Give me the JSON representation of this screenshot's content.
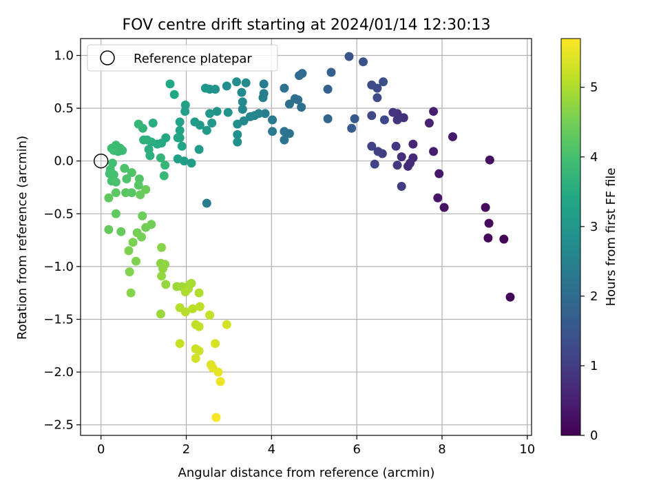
{
  "chart_data": {
    "type": "scatter",
    "title": "FOV centre drift starting at 2024/01/14 12:30:13",
    "xlabel": "Angular distance from reference (arcmin)",
    "ylabel": "Rotation from reference (arcmin)",
    "xlim": [
      -0.48,
      10.1
    ],
    "ylim": [
      -2.6,
      1.16
    ],
    "xticks": [
      0,
      2,
      4,
      6,
      8,
      10
    ],
    "xtick_labels": [
      "0",
      "2",
      "4",
      "6",
      "8",
      "10"
    ],
    "yticks": [
      -2.5,
      -2.0,
      -1.5,
      -1.0,
      -0.5,
      0.0,
      0.5,
      1.0
    ],
    "ytick_labels": [
      "−2.5",
      "−2.0",
      "−1.5",
      "−1.0",
      "−0.5",
      "0.0",
      "0.5",
      "1.0"
    ],
    "grid": true,
    "legend": {
      "position": "top-left",
      "entries": [
        {
          "label": "Reference platepar",
          "marker": "open-circle"
        }
      ]
    },
    "reference_point": {
      "x": 0.0,
      "y": 0.0
    },
    "colorbar": {
      "label": "Hours from first FF file",
      "colormap": "viridis",
      "range": [
        0,
        5.7
      ],
      "ticks": [
        0,
        1,
        2,
        3,
        4,
        5
      ],
      "tick_labels": [
        "0",
        "1",
        "2",
        "3",
        "4",
        "5"
      ]
    },
    "points": [
      {
        "x": 9.6,
        "y": -1.29,
        "c": 0.05
      },
      {
        "x": 9.45,
        "y": -0.74,
        "c": 0.1
      },
      {
        "x": 9.08,
        "y": -0.73,
        "c": 0.12
      },
      {
        "x": 9.1,
        "y": -0.59,
        "c": 0.14
      },
      {
        "x": 9.02,
        "y": -0.44,
        "c": 0.16
      },
      {
        "x": 9.12,
        "y": 0.01,
        "c": 0.2
      },
      {
        "x": 8.05,
        "y": -0.44,
        "c": 0.28
      },
      {
        "x": 7.9,
        "y": -0.35,
        "c": 0.33
      },
      {
        "x": 7.93,
        "y": -0.12,
        "c": 0.38
      },
      {
        "x": 8.25,
        "y": 0.23,
        "c": 0.42
      },
      {
        "x": 7.8,
        "y": 0.09,
        "c": 0.47
      },
      {
        "x": 7.8,
        "y": 0.47,
        "c": 0.5
      },
      {
        "x": 7.7,
        "y": 0.36,
        "c": 0.55
      },
      {
        "x": 7.32,
        "y": 0.16,
        "c": 0.6
      },
      {
        "x": 7.32,
        "y": 0.03,
        "c": 0.65
      },
      {
        "x": 7.25,
        "y": -0.02,
        "c": 0.67
      },
      {
        "x": 7.2,
        "y": -0.05,
        "c": 0.7
      },
      {
        "x": 7.05,
        "y": 0.04,
        "c": 0.74
      },
      {
        "x": 7.1,
        "y": 0.41,
        "c": 0.78
      },
      {
        "x": 6.95,
        "y": 0.45,
        "c": 0.81
      },
      {
        "x": 6.85,
        "y": 0.46,
        "c": 0.85
      },
      {
        "x": 6.95,
        "y": 0.39,
        "c": 0.88
      },
      {
        "x": 6.92,
        "y": 0.14,
        "c": 0.9
      },
      {
        "x": 6.95,
        "y": -0.04,
        "c": 0.95
      },
      {
        "x": 7.05,
        "y": -0.24,
        "c": 1.0
      },
      {
        "x": 6.6,
        "y": 0.07,
        "c": 1.02
      },
      {
        "x": 6.5,
        "y": 0.09,
        "c": 1.06
      },
      {
        "x": 6.35,
        "y": 0.14,
        "c": 1.1
      },
      {
        "x": 6.42,
        "y": -0.03,
        "c": 1.15
      },
      {
        "x": 6.65,
        "y": 0.39,
        "c": 1.2
      },
      {
        "x": 6.35,
        "y": 0.43,
        "c": 1.25
      },
      {
        "x": 6.48,
        "y": 0.6,
        "c": 1.28
      },
      {
        "x": 6.48,
        "y": 0.69,
        "c": 1.3
      },
      {
        "x": 6.35,
        "y": 0.72,
        "c": 1.33
      },
      {
        "x": 6.62,
        "y": 0.75,
        "c": 1.37
      },
      {
        "x": 6.15,
        "y": 0.94,
        "c": 1.42
      },
      {
        "x": 5.82,
        "y": 0.99,
        "c": 1.5
      },
      {
        "x": 5.95,
        "y": 0.4,
        "c": 1.58
      },
      {
        "x": 5.88,
        "y": 0.31,
        "c": 1.63
      },
      {
        "x": 5.4,
        "y": 0.84,
        "c": 1.7
      },
      {
        "x": 5.32,
        "y": 0.68,
        "c": 1.8
      },
      {
        "x": 5.32,
        "y": 0.4,
        "c": 1.86
      },
      {
        "x": 4.72,
        "y": 0.83,
        "c": 1.95
      },
      {
        "x": 4.65,
        "y": 0.81,
        "c": 2.0
      },
      {
        "x": 4.62,
        "y": 0.58,
        "c": 2.02
      },
      {
        "x": 4.7,
        "y": 0.51,
        "c": 2.05
      },
      {
        "x": 4.55,
        "y": 0.59,
        "c": 2.08
      },
      {
        "x": 4.42,
        "y": 0.54,
        "c": 2.1
      },
      {
        "x": 4.3,
        "y": 0.69,
        "c": 2.15
      },
      {
        "x": 4.3,
        "y": 0.28,
        "c": 2.18
      },
      {
        "x": 4.42,
        "y": 0.26,
        "c": 2.2
      },
      {
        "x": 4.3,
        "y": 0.2,
        "c": 2.22
      },
      {
        "x": 4.02,
        "y": 0.28,
        "c": 2.3
      },
      {
        "x": 4.02,
        "y": 0.39,
        "c": 2.33
      },
      {
        "x": 3.82,
        "y": 0.73,
        "c": 2.38
      },
      {
        "x": 3.82,
        "y": 0.64,
        "c": 2.42
      },
      {
        "x": 3.85,
        "y": 0.45,
        "c": 2.45
      },
      {
        "x": 3.8,
        "y": 0.6,
        "c": 2.48
      },
      {
        "x": 3.7,
        "y": 0.45,
        "c": 2.52
      },
      {
        "x": 3.6,
        "y": 0.43,
        "c": 2.55
      },
      {
        "x": 3.5,
        "y": 0.42,
        "c": 2.6
      },
      {
        "x": 3.35,
        "y": 0.38,
        "c": 2.62
      },
      {
        "x": 3.32,
        "y": 0.49,
        "c": 2.65
      },
      {
        "x": 3.32,
        "y": 0.56,
        "c": 2.68
      },
      {
        "x": 3.3,
        "y": 0.65,
        "c": 2.7
      },
      {
        "x": 3.4,
        "y": 0.74,
        "c": 2.72
      },
      {
        "x": 3.18,
        "y": 0.75,
        "c": 2.75
      },
      {
        "x": 2.95,
        "y": 0.71,
        "c": 2.78
      },
      {
        "x": 3.2,
        "y": 0.35,
        "c": 2.8
      },
      {
        "x": 3.2,
        "y": 0.25,
        "c": 2.82
      },
      {
        "x": 3.2,
        "y": 0.18,
        "c": 2.85
      },
      {
        "x": 2.98,
        "y": 0.46,
        "c": 2.88
      },
      {
        "x": 2.72,
        "y": 0.47,
        "c": 2.9
      },
      {
        "x": 2.68,
        "y": 0.68,
        "c": 2.92
      },
      {
        "x": 2.55,
        "y": 0.68,
        "c": 2.95
      },
      {
        "x": 2.45,
        "y": 0.69,
        "c": 2.97
      },
      {
        "x": 2.55,
        "y": 0.45,
        "c": 3.0
      },
      {
        "x": 2.6,
        "y": 0.36,
        "c": 3.02
      },
      {
        "x": 2.48,
        "y": 0.29,
        "c": 3.05
      },
      {
        "x": 2.32,
        "y": 0.34,
        "c": 3.07
      },
      {
        "x": 2.3,
        "y": 0.11,
        "c": 3.1
      },
      {
        "x": 2.2,
        "y": 0.37,
        "c": 3.12
      },
      {
        "x": 2.48,
        "y": -0.4,
        "c": 2.4
      },
      {
        "x": 2.12,
        "y": -0.02,
        "c": 3.15
      },
      {
        "x": 1.95,
        "y": 0.0,
        "c": 3.18
      },
      {
        "x": 1.8,
        "y": 0.02,
        "c": 3.2
      },
      {
        "x": 1.97,
        "y": 0.47,
        "c": 3.22
      },
      {
        "x": 1.98,
        "y": 0.53,
        "c": 3.25
      },
      {
        "x": 1.85,
        "y": 0.37,
        "c": 3.28
      },
      {
        "x": 1.85,
        "y": 0.29,
        "c": 3.3
      },
      {
        "x": 1.85,
        "y": 0.22,
        "c": 3.33
      },
      {
        "x": 1.8,
        "y": 0.22,
        "c": 3.35
      },
      {
        "x": 1.9,
        "y": 0.14,
        "c": 3.38
      },
      {
        "x": 1.72,
        "y": 0.63,
        "c": 3.4
      },
      {
        "x": 1.62,
        "y": 0.73,
        "c": 3.42
      },
      {
        "x": 1.52,
        "y": 0.22,
        "c": 3.45
      },
      {
        "x": 1.42,
        "y": 0.17,
        "c": 3.48
      },
      {
        "x": 1.32,
        "y": 0.16,
        "c": 3.5
      },
      {
        "x": 1.22,
        "y": 0.36,
        "c": 3.52
      },
      {
        "x": 1.18,
        "y": 0.18,
        "c": 3.55
      },
      {
        "x": 1.12,
        "y": 0.11,
        "c": 3.58
      },
      {
        "x": 1.15,
        "y": 0.05,
        "c": 3.6
      },
      {
        "x": 1.08,
        "y": 0.2,
        "c": 3.62
      },
      {
        "x": 1.0,
        "y": 0.2,
        "c": 3.65
      },
      {
        "x": 0.98,
        "y": 0.31,
        "c": 3.7
      },
      {
        "x": 0.88,
        "y": 0.35,
        "c": 3.75
      },
      {
        "x": 1.4,
        "y": 0.03,
        "c": 3.72
      },
      {
        "x": 1.5,
        "y": -0.04,
        "c": 3.78
      },
      {
        "x": 1.48,
        "y": -0.14,
        "c": 3.8
      },
      {
        "x": 0.5,
        "y": 0.1,
        "c": 3.82
      },
      {
        "x": 0.45,
        "y": 0.12,
        "c": 3.84
      },
      {
        "x": 0.4,
        "y": 0.09,
        "c": 3.86
      },
      {
        "x": 0.35,
        "y": 0.15,
        "c": 3.88
      },
      {
        "x": 0.3,
        "y": 0.1,
        "c": 3.9
      },
      {
        "x": 0.25,
        "y": 0.12,
        "c": 3.92
      },
      {
        "x": 0.27,
        "y": -0.02,
        "c": 3.94
      },
      {
        "x": 0.22,
        "y": -0.08,
        "c": 3.96
      },
      {
        "x": 0.2,
        "y": -0.12,
        "c": 3.98
      },
      {
        "x": 0.3,
        "y": -0.13,
        "c": 4.0
      },
      {
        "x": 0.25,
        "y": -0.19,
        "c": 4.02
      },
      {
        "x": 0.35,
        "y": -0.2,
        "c": 4.05
      },
      {
        "x": 0.55,
        "y": -0.07,
        "c": 4.08
      },
      {
        "x": 0.6,
        "y": -0.17,
        "c": 4.1
      },
      {
        "x": 0.72,
        "y": -0.11,
        "c": 4.12
      },
      {
        "x": 0.9,
        "y": -0.17,
        "c": 4.15
      },
      {
        "x": 0.88,
        "y": -0.23,
        "c": 4.18
      },
      {
        "x": 0.72,
        "y": -0.3,
        "c": 4.2
      },
      {
        "x": 0.58,
        "y": -0.3,
        "c": 4.22
      },
      {
        "x": 0.35,
        "y": -0.3,
        "c": 4.25
      },
      {
        "x": 0.18,
        "y": -0.35,
        "c": 4.28
      },
      {
        "x": 0.35,
        "y": -0.5,
        "c": 4.3
      },
      {
        "x": 0.18,
        "y": -0.65,
        "c": 4.32
      },
      {
        "x": 0.47,
        "y": -0.67,
        "c": 4.35
      },
      {
        "x": 0.92,
        "y": -0.32,
        "c": 4.38
      },
      {
        "x": 1.05,
        "y": -0.27,
        "c": 4.4
      },
      {
        "x": 0.97,
        "y": -0.52,
        "c": 4.42
      },
      {
        "x": 1.05,
        "y": -0.63,
        "c": 4.45
      },
      {
        "x": 1.18,
        "y": -0.6,
        "c": 4.48
      },
      {
        "x": 0.85,
        "y": -0.68,
        "c": 4.5
      },
      {
        "x": 0.95,
        "y": -0.72,
        "c": 4.52
      },
      {
        "x": 0.75,
        "y": -0.77,
        "c": 4.55
      },
      {
        "x": 0.65,
        "y": -0.85,
        "c": 4.58
      },
      {
        "x": 0.82,
        "y": -0.95,
        "c": 4.6
      },
      {
        "x": 0.67,
        "y": -1.05,
        "c": 4.62
      },
      {
        "x": 0.7,
        "y": -1.25,
        "c": 4.65
      },
      {
        "x": 1.42,
        "y": -0.82,
        "c": 4.68
      },
      {
        "x": 1.4,
        "y": -0.97,
        "c": 4.7
      },
      {
        "x": 1.5,
        "y": -0.98,
        "c": 4.72
      },
      {
        "x": 1.45,
        "y": -1.02,
        "c": 4.75
      },
      {
        "x": 1.42,
        "y": -1.09,
        "c": 4.78
      },
      {
        "x": 1.52,
        "y": -1.17,
        "c": 4.8
      },
      {
        "x": 1.4,
        "y": -1.45,
        "c": 4.82
      },
      {
        "x": 1.78,
        "y": -1.19,
        "c": 4.85
      },
      {
        "x": 1.9,
        "y": -1.19,
        "c": 4.88
      },
      {
        "x": 2.0,
        "y": -1.2,
        "c": 4.9
      },
      {
        "x": 2.08,
        "y": -1.17,
        "c": 4.92
      },
      {
        "x": 2.12,
        "y": -1.16,
        "c": 4.95
      },
      {
        "x": 2.05,
        "y": -1.21,
        "c": 4.97
      },
      {
        "x": 1.98,
        "y": -1.24,
        "c": 5.0
      },
      {
        "x": 2.3,
        "y": -1.25,
        "c": 5.02
      },
      {
        "x": 1.85,
        "y": -1.39,
        "c": 5.05
      },
      {
        "x": 1.98,
        "y": -1.43,
        "c": 5.07
      },
      {
        "x": 2.15,
        "y": -1.4,
        "c": 5.1
      },
      {
        "x": 2.32,
        "y": -1.38,
        "c": 5.12
      },
      {
        "x": 2.22,
        "y": -1.55,
        "c": 5.15
      },
      {
        "x": 2.3,
        "y": -1.57,
        "c": 5.17
      },
      {
        "x": 2.55,
        "y": -1.46,
        "c": 5.2
      },
      {
        "x": 1.85,
        "y": -1.73,
        "c": 5.22
      },
      {
        "x": 2.22,
        "y": -1.78,
        "c": 5.25
      },
      {
        "x": 2.3,
        "y": -1.8,
        "c": 5.27
      },
      {
        "x": 2.22,
        "y": -1.87,
        "c": 5.3
      },
      {
        "x": 2.95,
        "y": -1.55,
        "c": 5.32
      },
      {
        "x": 2.68,
        "y": -1.73,
        "c": 5.35
      },
      {
        "x": 2.58,
        "y": -1.93,
        "c": 5.4
      },
      {
        "x": 2.62,
        "y": -1.96,
        "c": 5.45
      },
      {
        "x": 2.75,
        "y": -2.0,
        "c": 5.5
      },
      {
        "x": 2.8,
        "y": -2.09,
        "c": 5.55
      },
      {
        "x": 2.7,
        "y": -2.43,
        "c": 5.65
      }
    ]
  }
}
